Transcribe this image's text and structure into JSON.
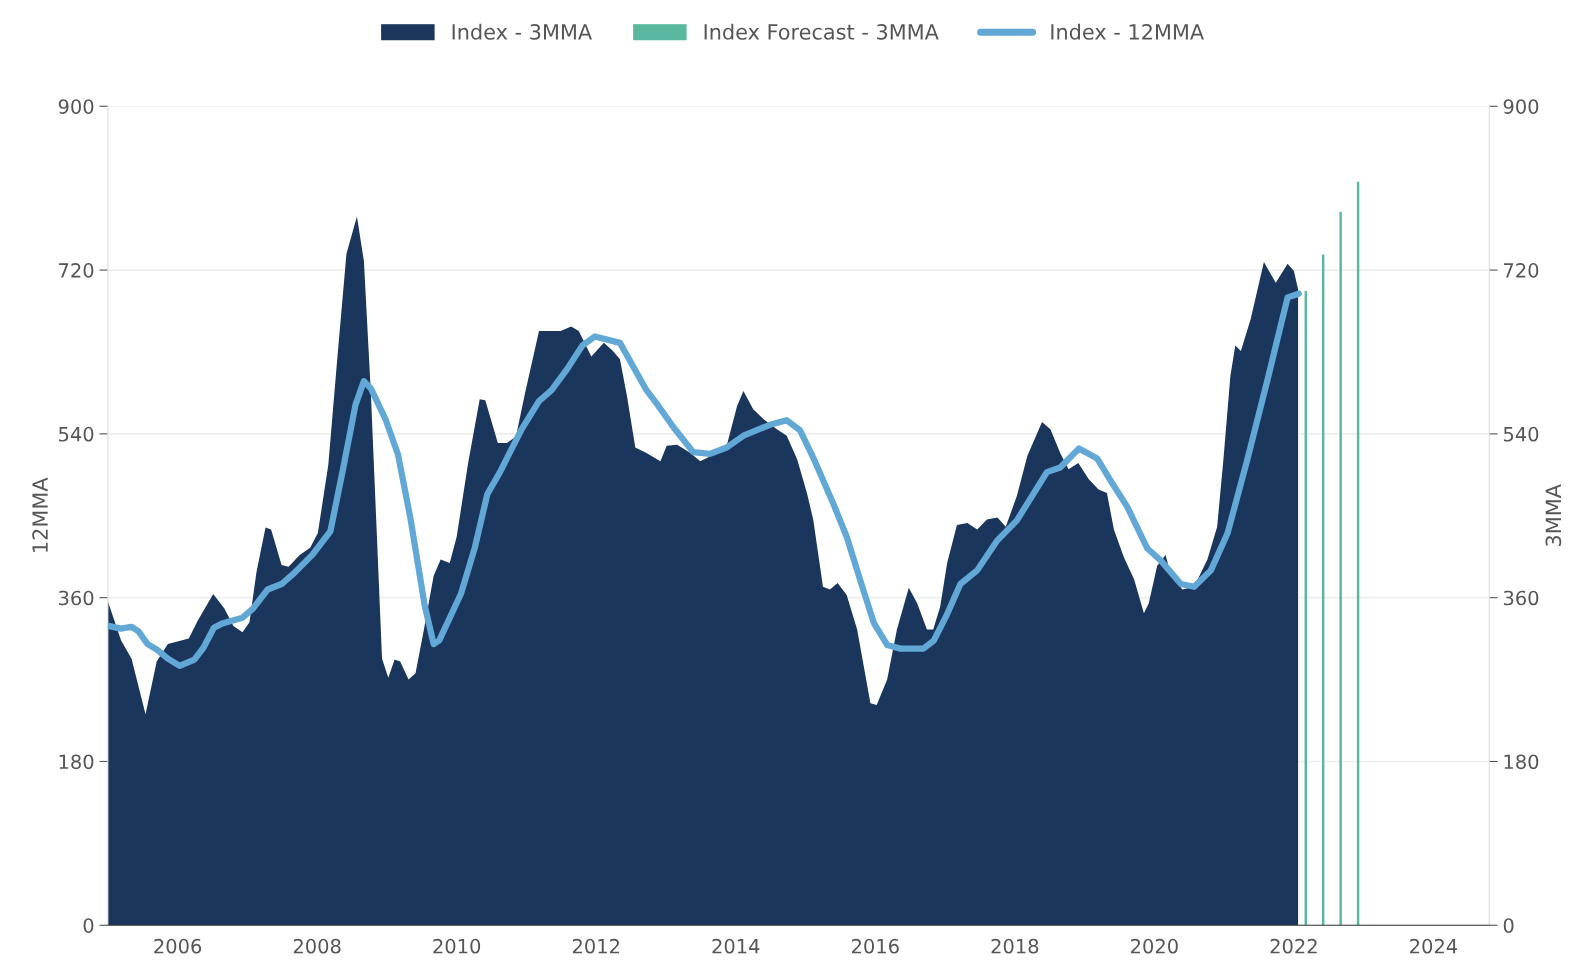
{
  "chart_data": {
    "type": "area",
    "ylabel": "12MMA",
    "y2label": "3MMA",
    "xlim": [
      2005,
      2024.8
    ],
    "xticks": [
      2006,
      2008,
      2010,
      2012,
      2014,
      2016,
      2018,
      2020,
      2022,
      2024
    ],
    "ylim": [
      0,
      900
    ],
    "yticks": [
      0,
      180,
      360,
      540,
      720,
      900
    ],
    "y2lim": [
      0,
      900
    ],
    "y2ticks": [
      0,
      180,
      360,
      540,
      720,
      900
    ],
    "grid": "y",
    "legend": "top",
    "series": [
      {
        "name": "Index - 3MMA",
        "axis": "y2",
        "color": "#1b365d",
        "x": [
          2005.0,
          2005.19,
          2005.34,
          2005.54,
          2005.7,
          2005.86,
          2006.16,
          2006.29,
          2006.51,
          2006.67,
          2006.8,
          2006.93,
          2007.03,
          2007.13,
          2007.26,
          2007.34,
          2007.49,
          2007.59,
          2007.75,
          2007.9,
          2008.01,
          2008.16,
          2008.29,
          2008.42,
          2008.57,
          2008.67,
          2008.77,
          2008.93,
          2009.02,
          2009.11,
          2009.19,
          2009.31,
          2009.41,
          2009.54,
          2009.67,
          2009.77,
          2009.9,
          2010.0,
          2010.16,
          2010.33,
          2010.41,
          2010.59,
          2010.72,
          2010.85,
          2010.98,
          2011.18,
          2011.34,
          2011.49,
          2011.64,
          2011.75,
          2011.93,
          2012.11,
          2012.24,
          2012.34,
          2012.44,
          2012.56,
          2012.72,
          2012.92,
          2013.01,
          2013.16,
          2013.35,
          2013.49,
          2013.68,
          2013.87,
          2014.02,
          2014.11,
          2014.25,
          2014.4,
          2014.59,
          2014.73,
          2014.88,
          2015.02,
          2015.11,
          2015.25,
          2015.35,
          2015.46,
          2015.59,
          2015.74,
          2015.93,
          2016.02,
          2016.17,
          2016.31,
          2016.48,
          2016.6,
          2016.74,
          2016.83,
          2016.93,
          2017.03,
          2017.17,
          2017.32,
          2017.46,
          2017.6,
          2017.75,
          2017.87,
          2018.03,
          2018.18,
          2018.39,
          2018.51,
          2018.65,
          2018.77,
          2018.91,
          2019.06,
          2019.2,
          2019.32,
          2019.42,
          2019.56,
          2019.71,
          2019.85,
          2019.92,
          2020.04,
          2020.16,
          2020.23,
          2020.4,
          2020.57,
          2020.76,
          2020.9,
          2020.99,
          2021.09,
          2021.16,
          2021.24,
          2021.38,
          2021.57,
          2021.74,
          2021.91,
          2022.0,
          2022.06
        ],
        "values": [
          356,
          313,
          293,
          232,
          290,
          309,
          315,
          335,
          364,
          348,
          329,
          322,
          333,
          388,
          437,
          435,
          396,
          394,
          407,
          415,
          431,
          506,
          624,
          738,
          779,
          730,
          585,
          293,
          272,
          292,
          290,
          270,
          277,
          329,
          384,
          402,
          398,
          427,
          506,
          578,
          577,
          530,
          530,
          537,
          585,
          653,
          653,
          653,
          658,
          653,
          625,
          640,
          631,
          622,
          582,
          525,
          519,
          510,
          527,
          528,
          519,
          510,
          517,
          527,
          571,
          587,
          567,
          556,
          545,
          538,
          512,
          475,
          446,
          372,
          369,
          376,
          363,
          325,
          244,
          242,
          270,
          325,
          371,
          354,
          325,
          325,
          350,
          398,
          440,
          442,
          435,
          446,
          448,
          438,
          472,
          516,
          553,
          545,
          519,
          501,
          508,
          490,
          479,
          475,
          435,
          405,
          380,
          343,
          354,
          395,
          407,
          387,
          369,
          372,
          402,
          438,
          512,
          604,
          637,
          631,
          666,
          729,
          706,
          727,
          719,
          699
        ]
      },
      {
        "name": "Index Forecast - 3MMA",
        "type": "bar",
        "axis": "y2",
        "color": "#5bb8a0",
        "x": [
          2022.17,
          2022.42,
          2022.67,
          2022.92
        ],
        "values": [
          697,
          737,
          784,
          817
        ]
      },
      {
        "name": "Index - 12MMA",
        "type": "line",
        "axis": "y",
        "color": "#62a8d6",
        "x": [
          2005.01,
          2005.19,
          2005.34,
          2005.44,
          2005.57,
          2005.7,
          2005.86,
          2006.03,
          2006.24,
          2006.37,
          2006.52,
          2006.65,
          2006.93,
          2007.08,
          2007.29,
          2007.49,
          2007.67,
          2007.93,
          2008.19,
          2008.37,
          2008.55,
          2008.67,
          2008.77,
          2008.98,
          2009.16,
          2009.34,
          2009.54,
          2009.67,
          2009.75,
          2010.06,
          2010.26,
          2010.44,
          2010.62,
          2010.93,
          2011.18,
          2011.36,
          2011.59,
          2011.8,
          2011.98,
          2012.34,
          2012.48,
          2012.72,
          2012.87,
          2013.11,
          2013.39,
          2013.63,
          2013.87,
          2014.11,
          2014.49,
          2014.73,
          2014.92,
          2015.11,
          2015.4,
          2015.59,
          2015.83,
          2015.98,
          2016.17,
          2016.36,
          2016.69,
          2016.84,
          2017.03,
          2017.22,
          2017.46,
          2017.75,
          2018.03,
          2018.46,
          2018.65,
          2018.92,
          2019.18,
          2019.37,
          2019.61,
          2019.9,
          2020.09,
          2020.38,
          2020.57,
          2020.81,
          2021.05,
          2021.33,
          2021.62,
          2021.91,
          2022.07
        ],
        "values": [
          329,
          326,
          328,
          323,
          309,
          303,
          293,
          285,
          292,
          305,
          327,
          332,
          338,
          348,
          369,
          375,
          387,
          407,
          433,
          501,
          572,
          598,
          590,
          556,
          517,
          446,
          352,
          309,
          313,
          364,
          415,
          474,
          498,
          545,
          576,
          588,
          612,
          637,
          647,
          640,
          621,
          588,
          573,
          547,
          520,
          518,
          525,
          538,
          550,
          555,
          544,
          514,
          463,
          427,
          368,
          332,
          308,
          304,
          304,
          313,
          342,
          375,
          390,
          423,
          445,
          498,
          503,
          524,
          513,
          489,
          460,
          414,
          401,
          375,
          372,
          390,
          431,
          511,
          599,
          690,
          694
        ]
      }
    ]
  }
}
